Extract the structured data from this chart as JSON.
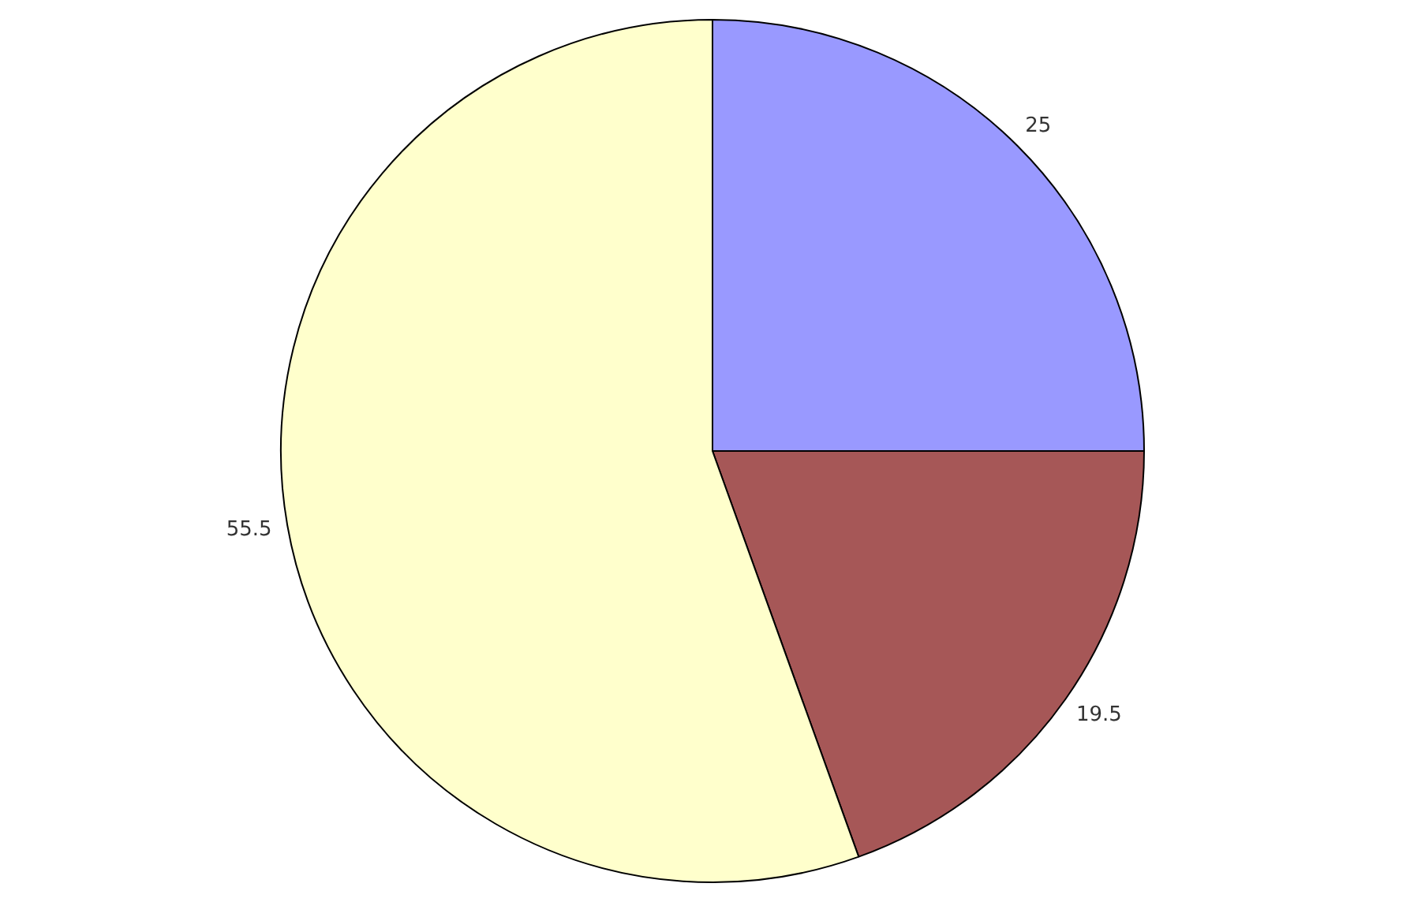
{
  "chart_data": {
    "type": "pie",
    "categories": [
      null,
      null,
      null
    ],
    "values": [
      25,
      19.5,
      55.5
    ],
    "colors": [
      "#9999ff",
      "#a65757",
      "#ffffcc"
    ],
    "data_labels": true,
    "legend": false
  }
}
